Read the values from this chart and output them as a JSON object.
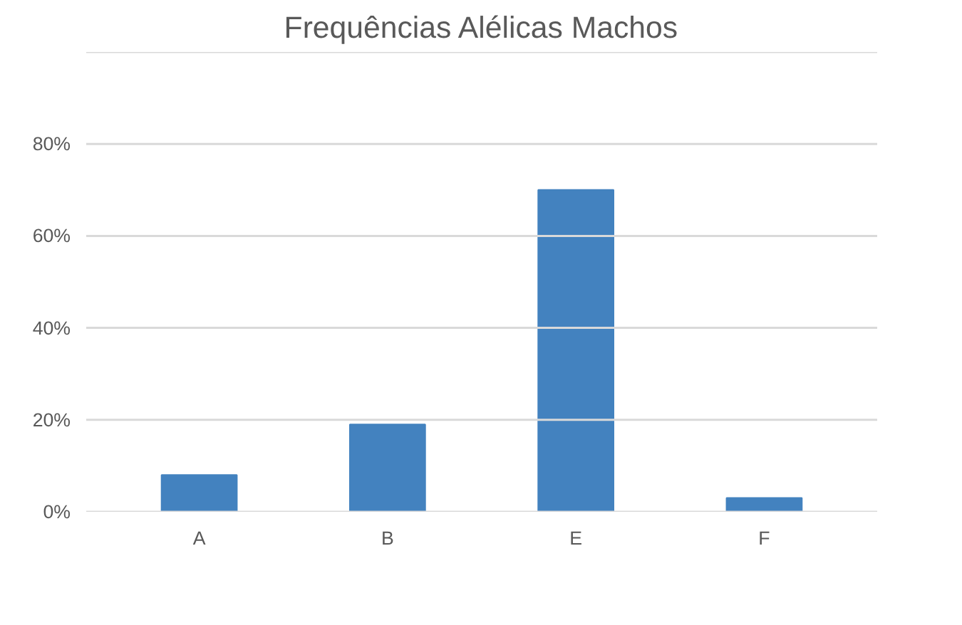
{
  "chart_data": {
    "type": "bar",
    "title": "Frequências Alélicas Machos",
    "categories": [
      "A",
      "B",
      "E",
      "F"
    ],
    "values": [
      8,
      19,
      70,
      3
    ],
    "color": "#4382bf",
    "ylim": [
      0,
      100
    ],
    "yticks": [
      {
        "value": 0,
        "label": "0%"
      },
      {
        "value": 20,
        "label": "20%"
      },
      {
        "value": 40,
        "label": "40%"
      },
      {
        "value": 60,
        "label": "60%"
      },
      {
        "value": 80,
        "label": "80%"
      },
      {
        "value": 100,
        "label": null
      }
    ],
    "grid": "y"
  }
}
